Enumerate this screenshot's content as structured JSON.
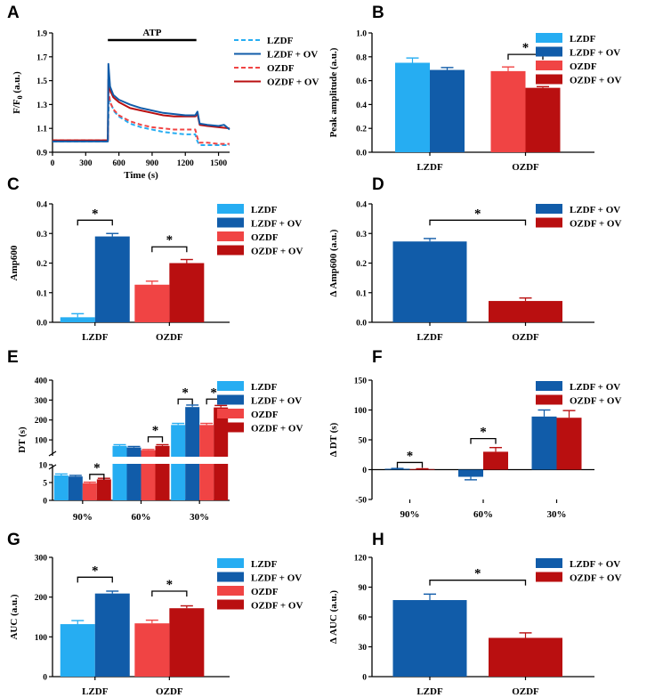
{
  "figure": {
    "panel_labels": [
      "A",
      "B",
      "C",
      "D",
      "E",
      "F",
      "G",
      "H"
    ],
    "colors": {
      "LZDF": "#26adf2",
      "LZDF + OV": "#115ca9",
      "OZDF": "#f04444",
      "OZDF + OV": "#b90f10"
    }
  },
  "chart_data": [
    {
      "panel": "A",
      "type": "line",
      "xlabel": "Time (s)",
      "ylabel": "F/F0 (a.u.)",
      "xlim": [
        0,
        1600
      ],
      "ylim": [
        0.9,
        1.9
      ],
      "xticks": [
        0,
        300,
        600,
        900,
        1200,
        1500
      ],
      "yticks": [
        0.9,
        1.1,
        1.3,
        1.5,
        1.7,
        1.9
      ],
      "annotation": {
        "text": "ATP",
        "x_start": 500,
        "x_end": 1300
      },
      "series": [
        {
          "name": "LZDF",
          "style": "dashed",
          "x": [
            0,
            300,
            480,
            500,
            510,
            530,
            560,
            600,
            700,
            800,
            900,
            1000,
            1100,
            1200,
            1290,
            1310,
            1330,
            1400,
            1500,
            1600
          ],
          "y": [
            0.99,
            0.99,
            0.99,
            0.99,
            1.36,
            1.3,
            1.24,
            1.2,
            1.14,
            1.11,
            1.09,
            1.07,
            1.06,
            1.05,
            1.05,
            0.99,
            0.96,
            0.96,
            0.96,
            0.96
          ]
        },
        {
          "name": "LZDF + OV",
          "style": "solid",
          "x": [
            0,
            300,
            480,
            500,
            505,
            520,
            550,
            600,
            700,
            800,
            900,
            1000,
            1100,
            1200,
            1290,
            1310,
            1330,
            1400,
            1500,
            1550,
            1600
          ],
          "y": [
            0.99,
            0.99,
            0.99,
            0.99,
            1.64,
            1.45,
            1.38,
            1.34,
            1.3,
            1.27,
            1.25,
            1.23,
            1.22,
            1.21,
            1.21,
            1.24,
            1.14,
            1.13,
            1.12,
            1.13,
            1.09
          ]
        },
        {
          "name": "OZDF",
          "style": "dashed",
          "x": [
            0,
            300,
            480,
            500,
            505,
            520,
            550,
            600,
            700,
            800,
            900,
            1000,
            1100,
            1200,
            1290,
            1310,
            1330,
            1400,
            1500,
            1600
          ],
          "y": [
            1.0,
            1.0,
            1.0,
            1.0,
            1.43,
            1.32,
            1.26,
            1.21,
            1.16,
            1.13,
            1.11,
            1.1,
            1.09,
            1.09,
            1.09,
            1.02,
            0.98,
            0.98,
            0.97,
            0.97
          ]
        },
        {
          "name": "OZDF + OV",
          "style": "solid",
          "x": [
            0,
            300,
            480,
            500,
            505,
            520,
            550,
            600,
            700,
            800,
            900,
            1000,
            1100,
            1200,
            1290,
            1310,
            1330,
            1400,
            1500,
            1600
          ],
          "y": [
            1.0,
            1.0,
            1.0,
            1.0,
            1.51,
            1.42,
            1.36,
            1.32,
            1.27,
            1.25,
            1.23,
            1.21,
            1.2,
            1.2,
            1.2,
            1.22,
            1.13,
            1.12,
            1.11,
            1.1
          ]
        }
      ]
    },
    {
      "panel": "B",
      "type": "bar",
      "ylabel": "Peak amplitude (a.u.)",
      "ylim": [
        0,
        1.0
      ],
      "yticks": [
        0.0,
        0.2,
        0.4,
        0.6,
        0.8,
        1.0
      ],
      "groups": [
        {
          "label": "LZDF",
          "bars": [
            {
              "name": "LZDF",
              "value": 0.75,
              "err": 0.04
            },
            {
              "name": "LZDF + OV",
              "value": 0.69,
              "err": 0.02
            }
          ]
        },
        {
          "label": "OZDF",
          "bars": [
            {
              "name": "OZDF",
              "value": 0.68,
              "err": 0.035
            },
            {
              "name": "OZDF + OV",
              "value": 0.54,
              "err": 0.01
            }
          ]
        }
      ],
      "significance": [
        {
          "from": [
            1,
            0
          ],
          "to": [
            1,
            1
          ],
          "y": 0.82,
          "text": "*"
        }
      ],
      "legend": [
        "LZDF",
        "LZDF + OV",
        "OZDF",
        "OZDF + OV"
      ]
    },
    {
      "panel": "C",
      "type": "bar",
      "ylabel": "Amp600",
      "ylim": [
        0,
        0.4
      ],
      "yticks": [
        0.0,
        0.1,
        0.2,
        0.3,
        0.4
      ],
      "groups": [
        {
          "label": "LZDF",
          "bars": [
            {
              "name": "LZDF",
              "value": 0.017,
              "err": 0.012
            },
            {
              "name": "LZDF + OV",
              "value": 0.29,
              "err": 0.01
            }
          ]
        },
        {
          "label": "OZDF",
          "bars": [
            {
              "name": "OZDF",
              "value": 0.127,
              "err": 0.012
            },
            {
              "name": "OZDF + OV",
              "value": 0.2,
              "err": 0.012
            }
          ]
        }
      ],
      "significance": [
        {
          "from": [
            0,
            0
          ],
          "to": [
            0,
            1
          ],
          "y": 0.345,
          "text": "*"
        },
        {
          "from": [
            1,
            0
          ],
          "to": [
            1,
            1
          ],
          "y": 0.255,
          "text": "*"
        }
      ],
      "legend": [
        "LZDF",
        "LZDF + OV",
        "OZDF",
        "OZDF + OV"
      ]
    },
    {
      "panel": "D",
      "type": "bar",
      "ylabel": "Δ Amp600 (a.u.)",
      "ylim": [
        0,
        0.4
      ],
      "yticks": [
        0.0,
        0.1,
        0.2,
        0.3,
        0.4
      ],
      "groups": [
        {
          "label": "LZDF",
          "bars": [
            {
              "name": "LZDF + OV",
              "value": 0.273,
              "err": 0.01
            }
          ]
        },
        {
          "label": "OZDF",
          "bars": [
            {
              "name": "OZDF + OV",
              "value": 0.072,
              "err": 0.01
            }
          ]
        }
      ],
      "significance": [
        {
          "from": [
            0,
            0
          ],
          "to": [
            1,
            0
          ],
          "y": 0.345,
          "text": "*"
        }
      ],
      "legend": [
        "LZDF + OV",
        "OZDF + OV"
      ]
    },
    {
      "panel": "E",
      "type": "bar",
      "ylabel": "DT (s)",
      "broken_axis": {
        "lower": [
          0,
          10
        ],
        "upper": [
          20,
          400
        ]
      },
      "yticks_lower": [
        0,
        5,
        10
      ],
      "yticks_upper": [
        100,
        200,
        300,
        400
      ],
      "groups": [
        {
          "label": "90%",
          "bars": [
            {
              "name": "LZDF",
              "value": 7.0,
              "err": 0.4
            },
            {
              "name": "LZDF + OV",
              "value": 6.7,
              "err": 0.3
            },
            {
              "name": "OZDF",
              "value": 4.8,
              "err": 0.3
            },
            {
              "name": "OZDF + OV",
              "value": 5.9,
              "err": 0.3
            }
          ]
        },
        {
          "label": "60%",
          "bars": [
            {
              "name": "LZDF",
              "value": 70,
              "err": 6
            },
            {
              "name": "LZDF + OV",
              "value": 62,
              "err": 5
            },
            {
              "name": "OZDF",
              "value": 48,
              "err": 4
            },
            {
              "name": "OZDF + OV",
              "value": 70,
              "err": 6
            }
          ]
        },
        {
          "label": "30%",
          "bars": [
            {
              "name": "LZDF",
              "value": 175,
              "err": 8
            },
            {
              "name": "LZDF + OV",
              "value": 265,
              "err": 10
            },
            {
              "name": "OZDF",
              "value": 175,
              "err": 8
            },
            {
              "name": "OZDF + OV",
              "value": 263,
              "err": 10
            }
          ]
        }
      ],
      "significance": [
        {
          "from": [
            0,
            2
          ],
          "to": [
            0,
            3
          ],
          "y": 7.3,
          "text": "*"
        },
        {
          "from": [
            1,
            2
          ],
          "to": [
            1,
            3
          ],
          "y": 115,
          "text": "*"
        },
        {
          "from": [
            2,
            0
          ],
          "to": [
            2,
            1
          ],
          "y": 305,
          "text": "*"
        },
        {
          "from": [
            2,
            2
          ],
          "to": [
            2,
            3
          ],
          "y": 305,
          "text": "*"
        }
      ],
      "legend": [
        "LZDF",
        "LZDF + OV",
        "OZDF",
        "OZDF + OV"
      ]
    },
    {
      "panel": "F",
      "type": "bar",
      "ylabel": "Δ DT (s)",
      "ylim": [
        -50,
        150
      ],
      "yticks": [
        -50,
        0,
        50,
        100,
        150
      ],
      "groups": [
        {
          "label": "90%",
          "bars": [
            {
              "name": "LZDF + OV",
              "value": 1.5,
              "err": 0.5
            },
            {
              "name": "OZDF + OV",
              "value": 1.0,
              "err": 0.5
            }
          ]
        },
        {
          "label": "60%",
          "bars": [
            {
              "name": "LZDF + OV",
              "value": -12,
              "err": 5
            },
            {
              "name": "OZDF + OV",
              "value": 30,
              "err": 7
            }
          ]
        },
        {
          "label": "30%",
          "bars": [
            {
              "name": "LZDF + OV",
              "value": 89,
              "err": 11
            },
            {
              "name": "OZDF + OV",
              "value": 87,
              "err": 12
            }
          ]
        }
      ],
      "significance": [
        {
          "from": [
            0,
            0
          ],
          "to": [
            0,
            1
          ],
          "y": 12,
          "text": "*"
        },
        {
          "from": [
            1,
            0
          ],
          "to": [
            1,
            1
          ],
          "y": 52,
          "text": "*"
        }
      ],
      "legend": [
        "LZDF + OV",
        "OZDF + OV"
      ]
    },
    {
      "panel": "G",
      "type": "bar",
      "ylabel": "AUC (a.u.)",
      "ylim": [
        0,
        300
      ],
      "yticks": [
        0,
        100,
        200,
        300
      ],
      "groups": [
        {
          "label": "LZDF",
          "bars": [
            {
              "name": "LZDF",
              "value": 132,
              "err": 9
            },
            {
              "name": "LZDF + OV",
              "value": 209,
              "err": 6
            }
          ]
        },
        {
          "label": "OZDF",
          "bars": [
            {
              "name": "OZDF",
              "value": 134,
              "err": 8
            },
            {
              "name": "OZDF + OV",
              "value": 172,
              "err": 6
            }
          ]
        }
      ],
      "significance": [
        {
          "from": [
            0,
            0
          ],
          "to": [
            0,
            1
          ],
          "y": 250,
          "text": "*"
        },
        {
          "from": [
            1,
            0
          ],
          "to": [
            1,
            1
          ],
          "y": 215,
          "text": "*"
        }
      ],
      "legend": [
        "LZDF",
        "LZDF + OV",
        "OZDF",
        "OZDF + OV"
      ]
    },
    {
      "panel": "H",
      "type": "bar",
      "ylabel": "Δ AUC (a.u.)",
      "ylim": [
        0,
        120
      ],
      "yticks": [
        0,
        30,
        60,
        90,
        120
      ],
      "groups": [
        {
          "label": "LZDF",
          "bars": [
            {
              "name": "LZDF + OV",
              "value": 77,
              "err": 6
            }
          ]
        },
        {
          "label": "OZDF",
          "bars": [
            {
              "name": "OZDF + OV",
              "value": 39,
              "err": 5
            }
          ]
        }
      ],
      "significance": [
        {
          "from": [
            0,
            0
          ],
          "to": [
            1,
            0
          ],
          "y": 97,
          "text": "*"
        }
      ],
      "legend": [
        "LZDF + OV",
        "OZDF + OV"
      ]
    }
  ]
}
